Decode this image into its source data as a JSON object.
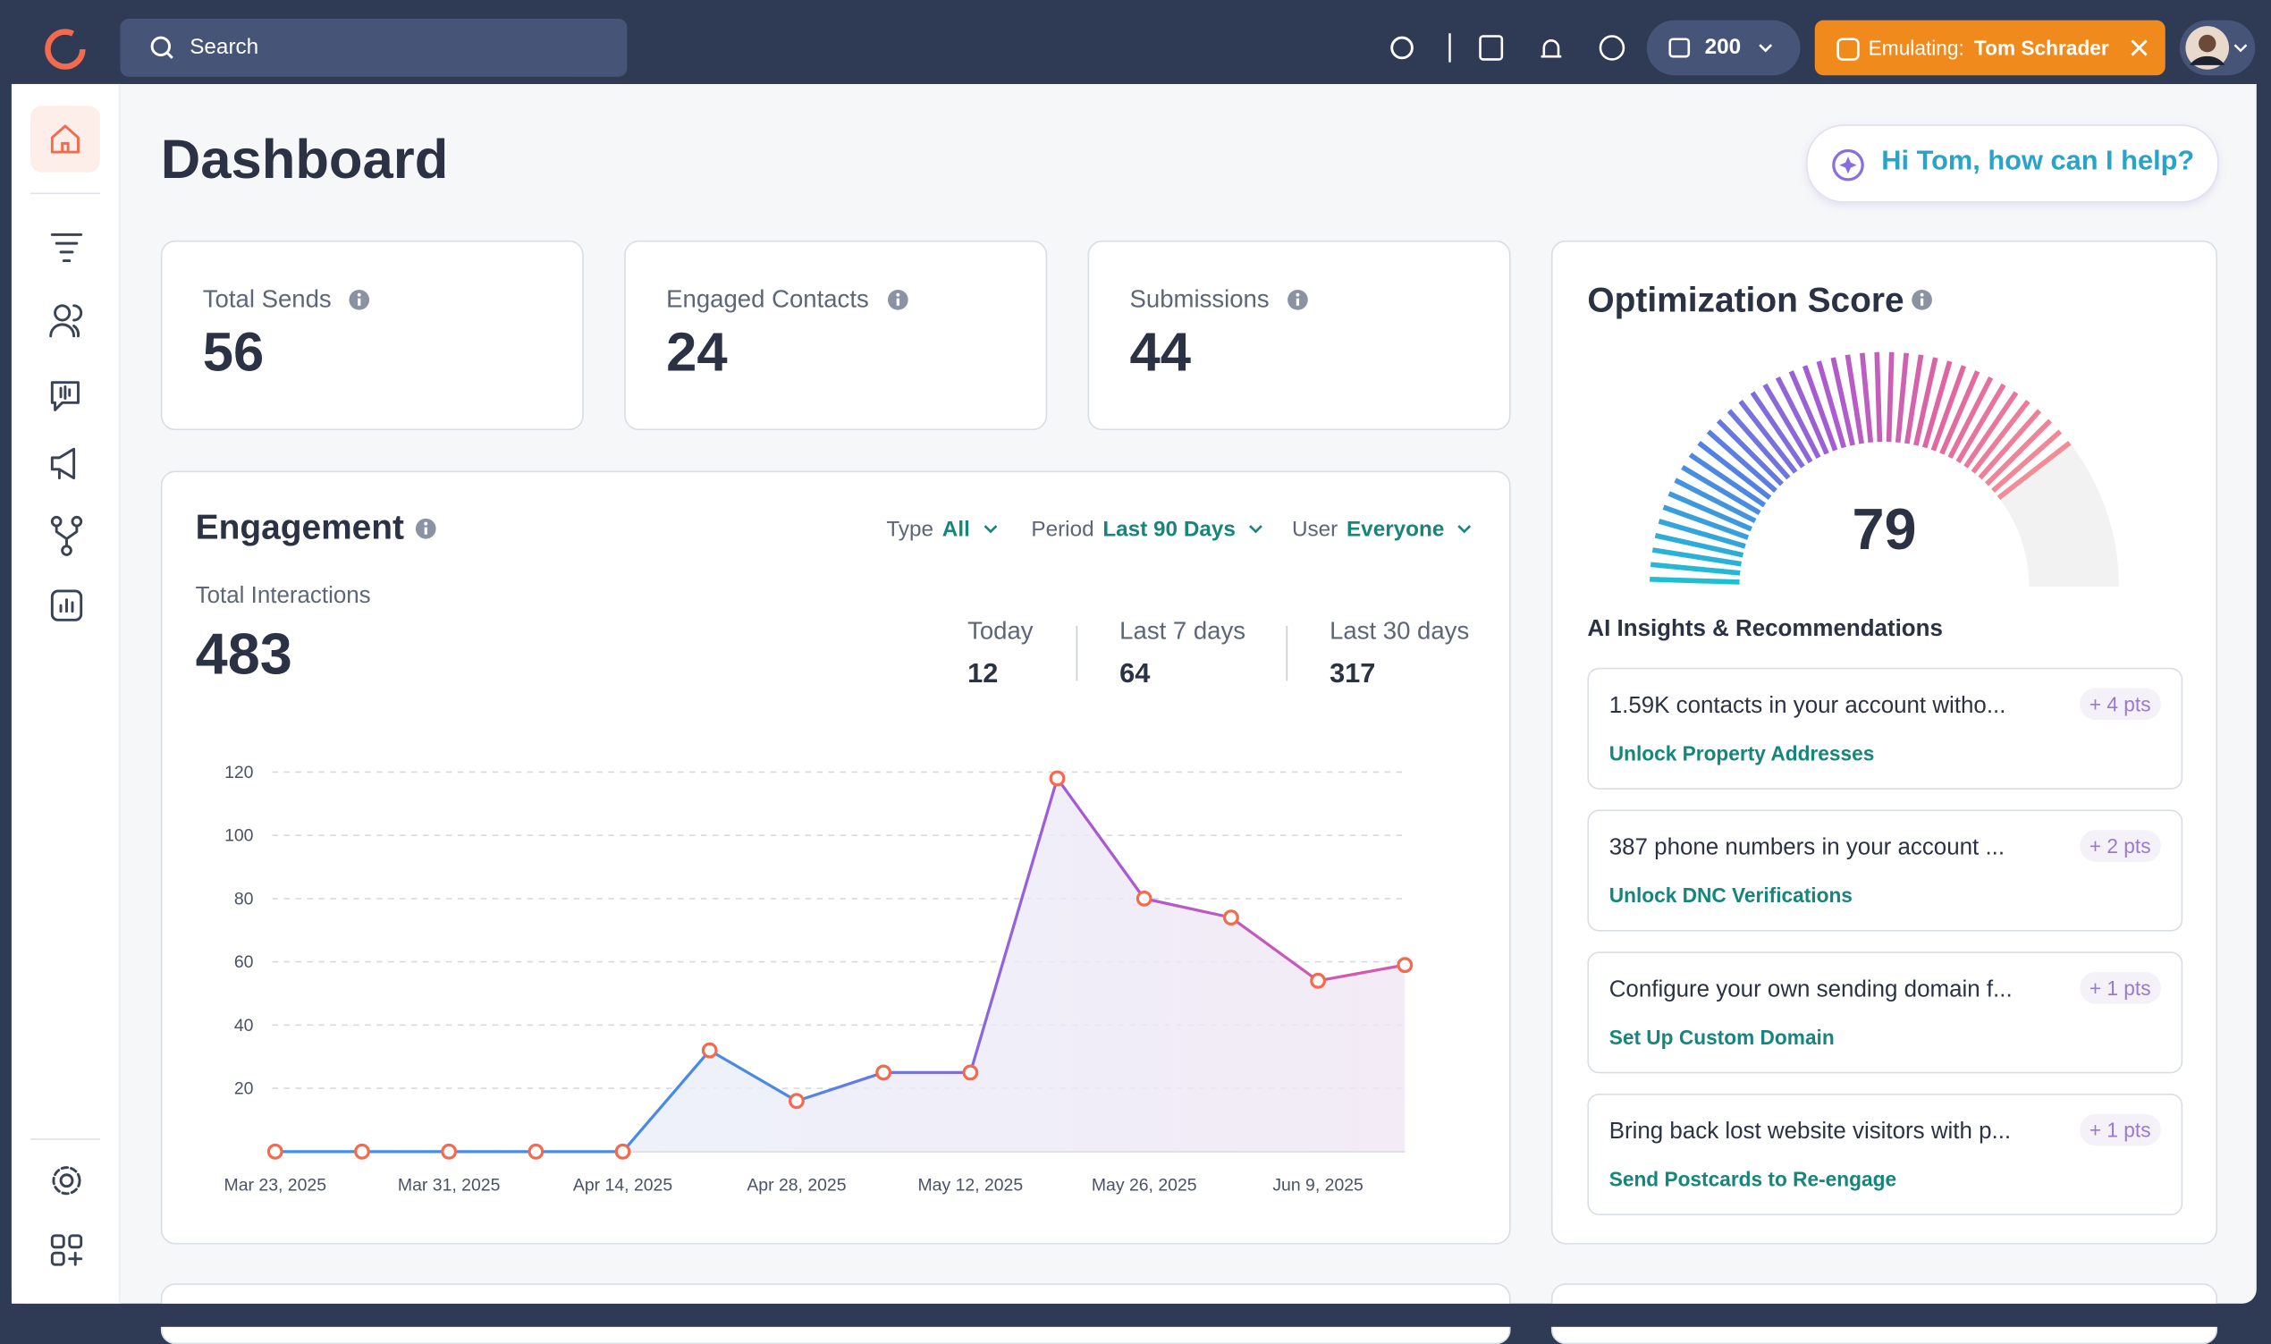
{
  "topbar": {
    "search": "Search",
    "credits": 200,
    "emulating_label": "Emulating:",
    "emulating_user": "Tom Schrader"
  },
  "page": {
    "title": "Dashboard",
    "assistant": "Hi Tom, how can I help?"
  },
  "stats": [
    {
      "label": "Total Sends",
      "value": 56
    },
    {
      "label": "Engaged Contacts",
      "value": 24
    },
    {
      "label": "Submissions",
      "value": 44
    }
  ],
  "engagement": {
    "title": "Engagement",
    "filters": [
      {
        "label": "Type",
        "value": "All"
      },
      {
        "label": "Period",
        "value": "Last 90 Days"
      },
      {
        "label": "User",
        "value": "Everyone"
      }
    ],
    "total_label": "Total Interactions",
    "total": 483,
    "periods": [
      {
        "label": "Today",
        "value": 12
      },
      {
        "label": "Last 7 days",
        "value": 64
      },
      {
        "label": "Last 30 days",
        "value": 317
      }
    ],
    "chart_data": {
      "type": "line",
      "categories": [
        "Mar 23, 2025",
        null,
        "Mar 31, 2025",
        null,
        "Apr 14, 2025",
        null,
        "Apr 28, 2025",
        null,
        "May 12, 2025",
        null,
        "May 26, 2025",
        null,
        "Jun 9, 2025",
        null
      ],
      "values": [
        0,
        0,
        0,
        0,
        0,
        32,
        16,
        25,
        25,
        118,
        80,
        74,
        54,
        59
      ],
      "ylim": [
        0,
        120
      ],
      "yticks": [
        20,
        40,
        60,
        80,
        100,
        120
      ],
      "grid": true,
      "color": "#f26b4f"
    }
  },
  "optimization": {
    "title": "Optimization Score",
    "score": 79,
    "max": 100,
    "insights_title": "AI Insights & Recommendations",
    "items": [
      {
        "text": "1.59K contacts in your account witho...",
        "points": "+ 4 pts",
        "action": "Unlock Property Addresses"
      },
      {
        "text": "387 phone numbers in your account ...",
        "points": "+ 2 pts",
        "action": "Unlock DNC Verifications"
      },
      {
        "text": "Configure your own sending domain f...",
        "points": "+ 1 pts",
        "action": "Set Up Custom Domain"
      },
      {
        "text": "Bring back lost website visitors with p...",
        "points": "+ 1 pts",
        "action": "Send Postcards to Re-engage"
      }
    ]
  }
}
